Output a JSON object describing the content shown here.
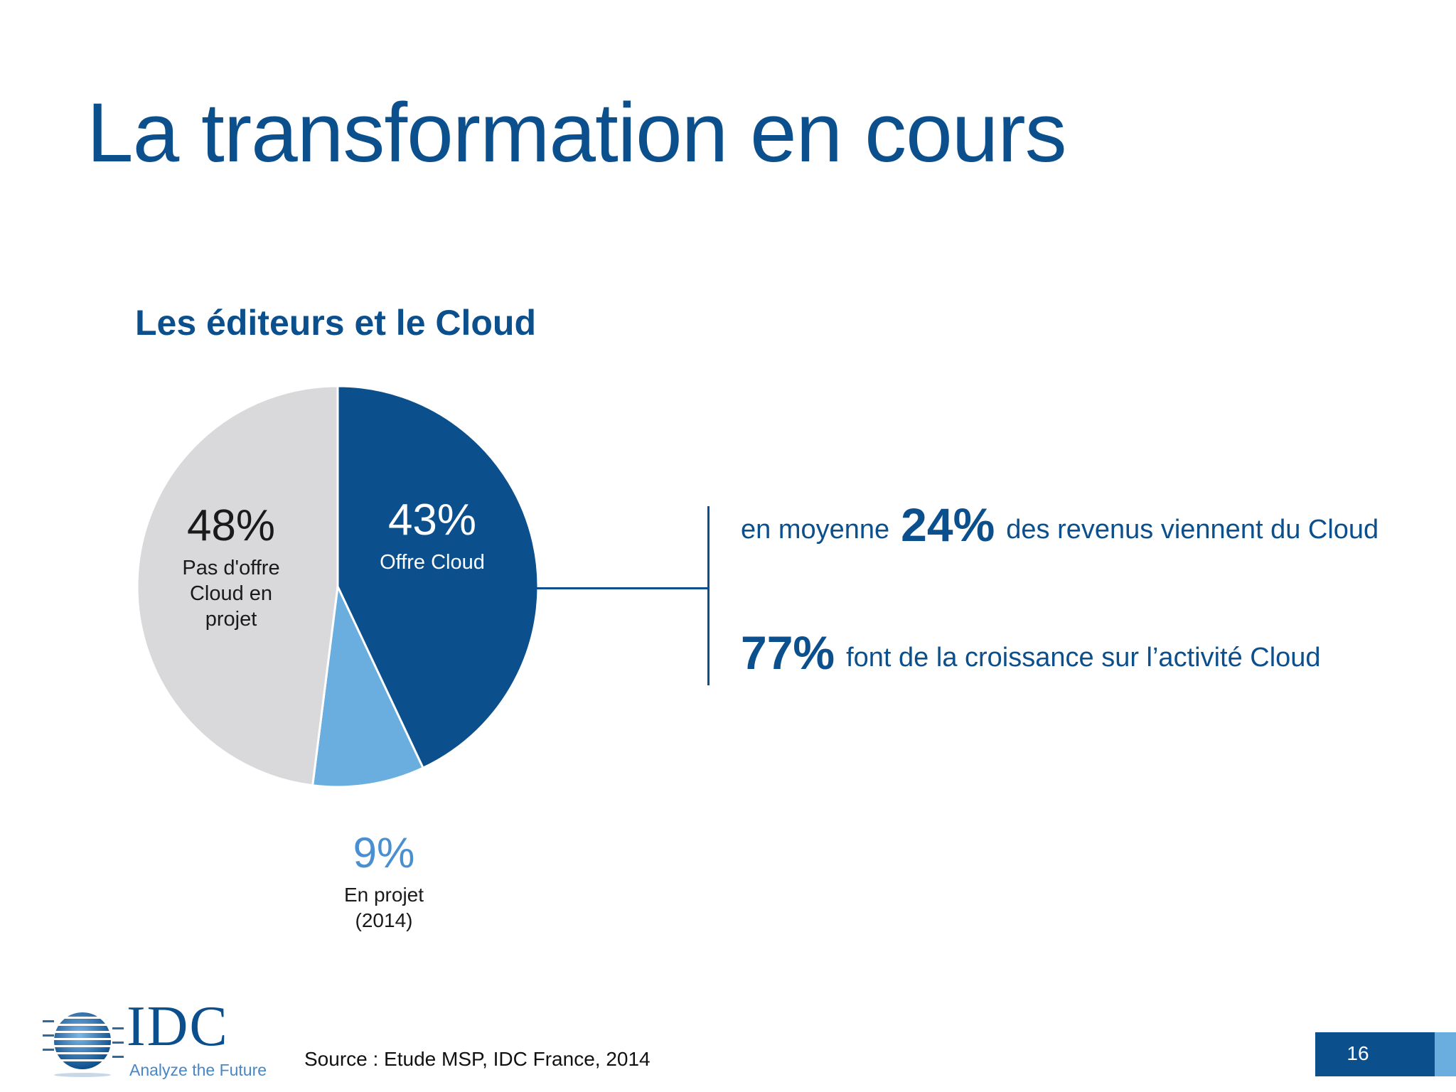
{
  "title": "La transformation en cours",
  "subtitle": "Les éditeurs et le Cloud",
  "colors": {
    "primary": "#0b4f8c",
    "slice_offre": "#0b4f8c",
    "slice_projet": "#6aaee0",
    "slice_pas": "#d9d9dc"
  },
  "chart_data": {
    "type": "pie",
    "title": "Les éditeurs et le Cloud",
    "slices": [
      {
        "value": 43,
        "label_value": "43%",
        "label_lines": [
          "Offre Cloud"
        ],
        "color": "#0b4f8c",
        "text_color": "#ffffff"
      },
      {
        "value": 9,
        "label_value": "9%",
        "label_lines": [
          "En projet",
          "(2014)"
        ],
        "color": "#6aaee0",
        "text_color": "#1a1a1a",
        "value_color": "#4a8fcf"
      },
      {
        "value": 48,
        "label_value": "48%",
        "label_lines": [
          "Pas d'offre",
          "Cloud en",
          "projet"
        ],
        "color": "#d9d9dc",
        "text_color": "#1a1a1a"
      }
    ]
  },
  "stats": {
    "stat1_pre": "en moyenne",
    "stat1_value": "24%",
    "stat1_post": "des revenus viennent du Cloud",
    "stat2_value": "77%",
    "stat2_post": "font de la croissance sur l’activité Cloud"
  },
  "footer": {
    "logo_text": "IDC",
    "logo_tagline": "Analyze the Future",
    "source": "Source : Etude MSP, IDC France, 2014",
    "page_number": "16"
  }
}
